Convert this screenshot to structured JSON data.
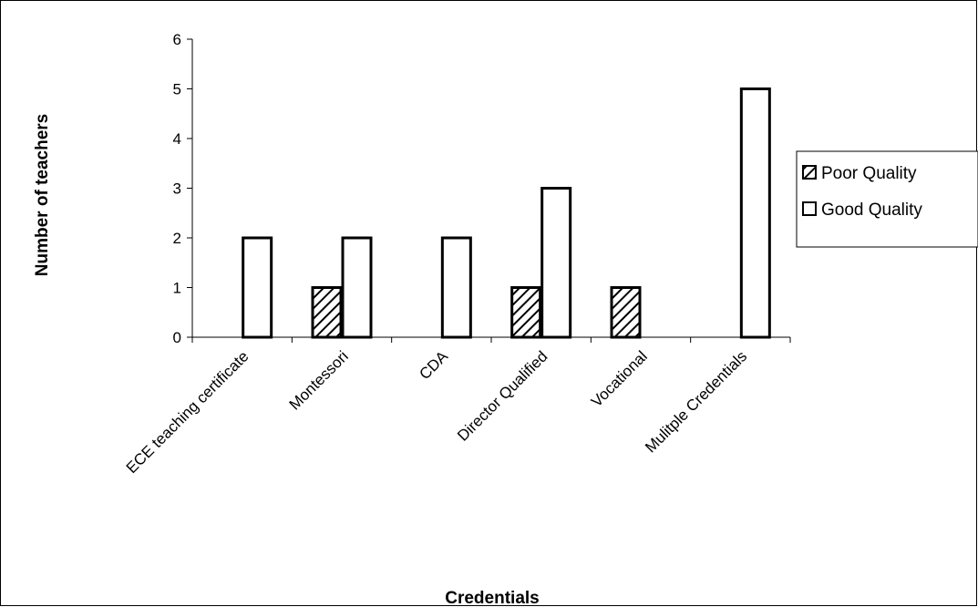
{
  "chart_data": {
    "type": "bar",
    "categories": [
      "ECE teaching certificate",
      "Montessori",
      "CDA",
      "Director Qualified",
      "Vocational",
      "Mulitple Credentials"
    ],
    "series": [
      {
        "name": "Poor Quality",
        "values": [
          0,
          1,
          0,
          1,
          1,
          0
        ],
        "pattern": "diagonal-hatch"
      },
      {
        "name": "Good Quality",
        "values": [
          2,
          2,
          2,
          3,
          0,
          5
        ],
        "pattern": "solid-white"
      }
    ],
    "title": "",
    "xlabel": "Credentials",
    "ylabel": "Number of teachers",
    "ylim": [
      0,
      6
    ],
    "yticks": [
      0,
      1,
      2,
      3,
      4,
      5,
      6
    ],
    "grid": false,
    "legend_position": "right",
    "colors": {
      "bar_fill": "#ffffff",
      "bar_stroke": "#000000",
      "hatch": "#000000"
    }
  }
}
